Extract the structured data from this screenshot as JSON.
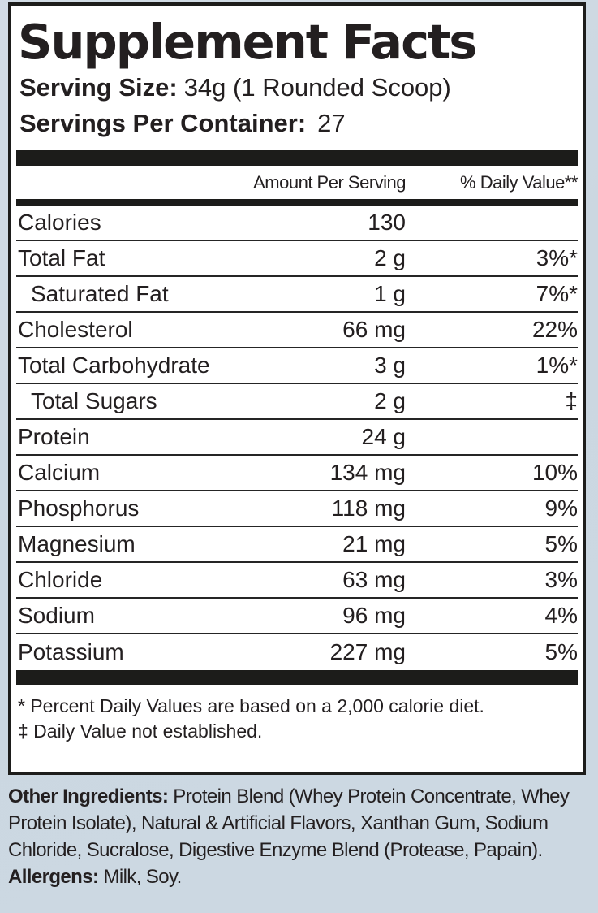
{
  "colors": {
    "page_background": "#ccd8e2",
    "panel_background": "#ffffff",
    "border_and_bars": "#1d1d1b",
    "text": "#231f20"
  },
  "panel": {
    "title": "Supplement Facts",
    "serving_size_label": "Serving Size:",
    "serving_size_value": "34g (1 Rounded Scoop)",
    "servings_per_container_label": "Servings Per Container:",
    "servings_per_container_value": "27"
  },
  "table": {
    "amount_per_serving_header": "Amount Per Serving",
    "daily_value_header": "% Daily Value**",
    "rows": [
      {
        "name": "Calories",
        "amount": "130",
        "dv": "",
        "indent": false
      },
      {
        "name": "Total Fat",
        "amount": "2 g",
        "dv": "3%*",
        "indent": false
      },
      {
        "name": "Saturated Fat",
        "amount": "1 g",
        "dv": "7%*",
        "indent": true
      },
      {
        "name": "Cholesterol",
        "amount": "66 mg",
        "dv": "22%",
        "indent": false
      },
      {
        "name": "Total Carbohydrate",
        "amount": "3 g",
        "dv": "1%*",
        "indent": false
      },
      {
        "name": "Total Sugars",
        "amount": "2 g",
        "dv": "‡",
        "indent": true
      },
      {
        "name": "Protein",
        "amount": "24 g",
        "dv": "",
        "indent": false
      },
      {
        "name": "Calcium",
        "amount": "134 mg",
        "dv": "10%",
        "indent": false
      },
      {
        "name": "Phosphorus",
        "amount": "118 mg",
        "dv": "9%",
        "indent": false
      },
      {
        "name": "Magnesium",
        "amount": "21 mg",
        "dv": "5%",
        "indent": false
      },
      {
        "name": "Chloride",
        "amount": "63 mg",
        "dv": "3%",
        "indent": false
      },
      {
        "name": "Sodium",
        "amount": "96 mg",
        "dv": "4%",
        "indent": false
      },
      {
        "name": "Potassium",
        "amount": "227 mg",
        "dv": "5%",
        "indent": false
      }
    ]
  },
  "footnotes": [
    "* Percent Daily Values are based on a 2,000 calorie diet.",
    "‡ Daily Value not established."
  ],
  "other_ingredients": {
    "label": "Other Ingredients:",
    "text": " Protein Blend (Whey Protein Concentrate, Whey Protein Isolate), Natural & Artificial Flavors, Xanthan Gum, Sodium Chloride, Sucralose, Digestive Enzyme Blend (Protease, Papain)."
  },
  "allergens": {
    "label": "Allergens:",
    "text": " Milk, Soy."
  }
}
